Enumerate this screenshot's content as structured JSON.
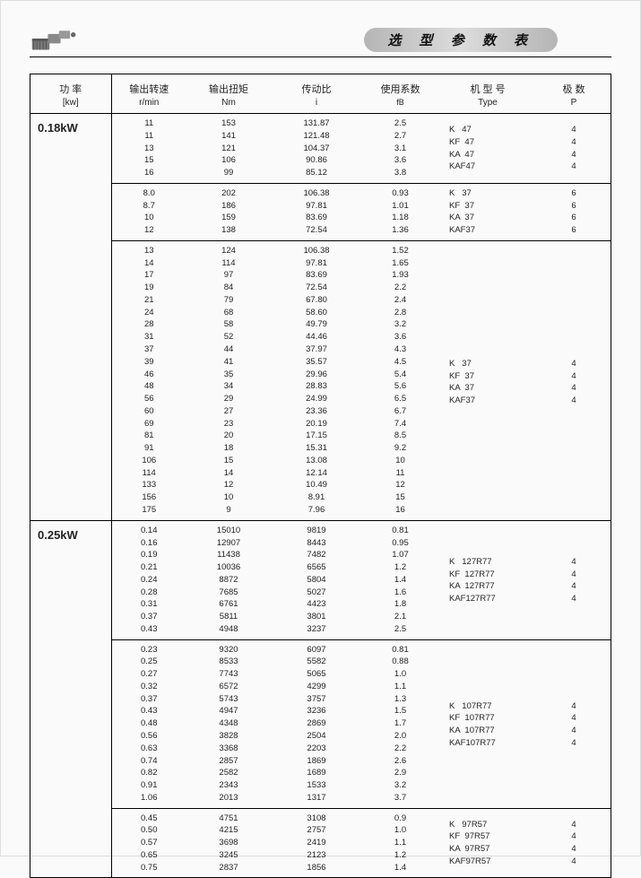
{
  "title": "选 型 参 数 表",
  "headers": {
    "power": {
      "top": "功  率",
      "bot": "[kw]"
    },
    "rpm": {
      "top": "输出转速",
      "bot": "r/min"
    },
    "torque": {
      "top": "输出扭矩",
      "bot": "Nm"
    },
    "ratio": {
      "top": "传动比",
      "bot": "i"
    },
    "fb": {
      "top": "使用系数",
      "bot": "fB"
    },
    "type": {
      "top": "机 型 号",
      "bot": "Type"
    },
    "poles": {
      "top": "极  数",
      "bot": "P"
    }
  },
  "groups": [
    {
      "power": "0.18kW",
      "blocks": [
        {
          "rpm": [
            "11",
            "11",
            "13",
            "15",
            "16"
          ],
          "nm": [
            "153",
            "141",
            "121",
            "106",
            "99"
          ],
          "i": [
            "131.87",
            "121.48",
            "104.37",
            "90.86",
            "85.12"
          ],
          "fb": [
            "2.5",
            "2.7",
            "3.1",
            "3.6",
            "3.8"
          ],
          "type": [
            "K   47",
            "KF  47",
            "KA  47",
            "KAF47"
          ],
          "p": [
            "4",
            "4",
            "4",
            "4"
          ]
        },
        {
          "rpm": [
            "8.0",
            "8.7",
            "10",
            "12"
          ],
          "nm": [
            "202",
            "186",
            "159",
            "138"
          ],
          "i": [
            "106.38",
            "97.81",
            "83.69",
            "72.54"
          ],
          "fb": [
            "0.93",
            "1.01",
            "1.18",
            "1.36"
          ],
          "type": [
            "K   37",
            "KF  37",
            "KA  37",
            "KAF37"
          ],
          "p": [
            "6",
            "6",
            "6",
            "6"
          ]
        },
        {
          "rpm": [
            "13",
            "14",
            "17",
            "19",
            "21",
            "24",
            "28",
            "31",
            "37",
            "39",
            "46",
            "48",
            "56",
            "60",
            "69",
            "81",
            "91",
            "106",
            "114",
            "133",
            "156",
            "175"
          ],
          "nm": [
            "124",
            "114",
            "97",
            "84",
            "79",
            "68",
            "58",
            "52",
            "44",
            "41",
            "35",
            "34",
            "29",
            "27",
            "23",
            "20",
            "18",
            "15",
            "14",
            "12",
            "10",
            "9"
          ],
          "i": [
            "106.38",
            "97.81",
            "83.69",
            "72.54",
            "67.80",
            "58.60",
            "49.79",
            "44.46",
            "37.97",
            "35.57",
            "29.96",
            "28.83",
            "24.99",
            "23.36",
            "20.19",
            "17.15",
            "15.31",
            "13.08",
            "12.14",
            "10.49",
            "8.91",
            "7.96"
          ],
          "fb": [
            "1.52",
            "1.65",
            "1.93",
            "2.2",
            "2.4",
            "2.8",
            "3.2",
            "3.6",
            "4.3",
            "4.5",
            "5.4",
            "5.6",
            "6.5",
            "6.7",
            "7.4",
            "8.5",
            "9.2",
            "10",
            "11",
            "12",
            "15",
            "16"
          ],
          "type": [
            "K   37",
            "KF  37",
            "KA  37",
            "KAF37"
          ],
          "p": [
            "4",
            "4",
            "4",
            "4"
          ]
        }
      ]
    },
    {
      "power": "0.25kW",
      "blocks": [
        {
          "rpm": [
            "0.14",
            "0.16",
            "0.19",
            "0.21",
            "0.24",
            "0.28",
            "0.31",
            "0.37",
            "0.43"
          ],
          "nm": [
            "15010",
            "12907",
            "11438",
            "10036",
            "8872",
            "7685",
            "6761",
            "5811",
            "4948"
          ],
          "i": [
            "9819",
            "8443",
            "7482",
            "6565",
            "5804",
            "5027",
            "4423",
            "3801",
            "3237"
          ],
          "fb": [
            "0.81",
            "0.95",
            "1.07",
            "1.2",
            "1.4",
            "1.6",
            "1.8",
            "2.1",
            "2.5"
          ],
          "type": [
            "K   127R77",
            "KF  127R77",
            "KA  127R77",
            "KAF127R77"
          ],
          "p": [
            "4",
            "4",
            "4",
            "4"
          ]
        },
        {
          "rpm": [
            "0.23",
            "0.25",
            "0.27",
            "0.32",
            "0.37",
            "0.43",
            "0.48",
            "0.56",
            "0.63",
            "0.74",
            "0.82",
            "0.91",
            "1.06"
          ],
          "nm": [
            "9320",
            "8533",
            "7743",
            "6572",
            "5743",
            "4947",
            "4348",
            "3828",
            "3368",
            "2857",
            "2582",
            "2343",
            "2013"
          ],
          "i": [
            "6097",
            "5582",
            "5065",
            "4299",
            "3757",
            "3236",
            "2869",
            "2504",
            "2203",
            "1869",
            "1689",
            "1533",
            "1317"
          ],
          "fb": [
            "0.81",
            "0.88",
            "1.0",
            "1.1",
            "1.3",
            "1.5",
            "1.7",
            "2.0",
            "2.2",
            "2.6",
            "2.9",
            "3.2",
            "3.7"
          ],
          "type": [
            "K   107R77",
            "KF  107R77",
            "KA  107R77",
            "KAF107R77"
          ],
          "p": [
            "4",
            "4",
            "4",
            "4"
          ]
        },
        {
          "rpm": [
            "0.45",
            "0.50",
            "0.57",
            "0.65",
            "0.75"
          ],
          "nm": [
            "4751",
            "4215",
            "3698",
            "3245",
            "2837"
          ],
          "i": [
            "3108",
            "2757",
            "2419",
            "2123",
            "1856"
          ],
          "fb": [
            "0.9",
            "1.0",
            "1.1",
            "1.2",
            "1.4"
          ],
          "type": [
            "K   97R57",
            "KF  97R57",
            "KA  97R57",
            "KAF97R57"
          ],
          "p": [
            "4",
            "4",
            "4",
            "4"
          ]
        }
      ]
    }
  ],
  "styling": {
    "page_bg": "#fafafa",
    "border_color": "#000000",
    "title_bg_left": "#b5b5b5",
    "title_bg_mid": "#dcdcdc",
    "font_size_body": 10,
    "font_size_power": 13,
    "font_size_title": 15
  }
}
